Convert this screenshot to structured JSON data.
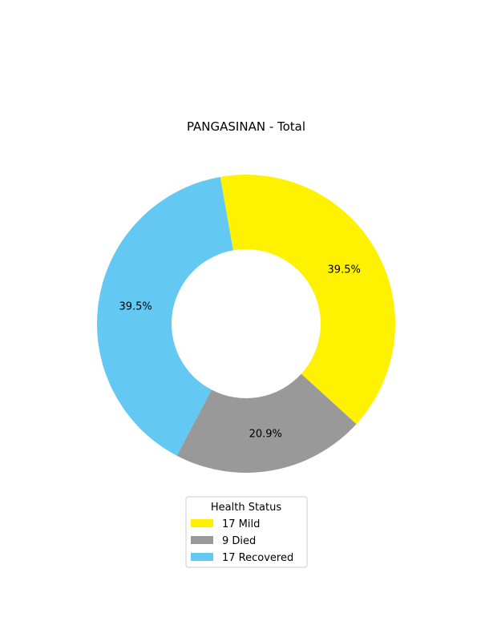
{
  "chart_data": {
    "type": "pie",
    "style": "donut",
    "title": "PANGASINAN - Total",
    "legend_title": "Health Status",
    "legend_position": "bottom-center",
    "slices": [
      {
        "label": "17  Mild",
        "value": 17,
        "pct_label": "39.5%",
        "color": "#fff200"
      },
      {
        "label": "9  Died",
        "value": 9,
        "pct_label": "20.9%",
        "color": "#999999"
      },
      {
        "label": "17  Recovered",
        "value": 17,
        "pct_label": "39.5%",
        "color": "#63c8f2"
      }
    ]
  }
}
